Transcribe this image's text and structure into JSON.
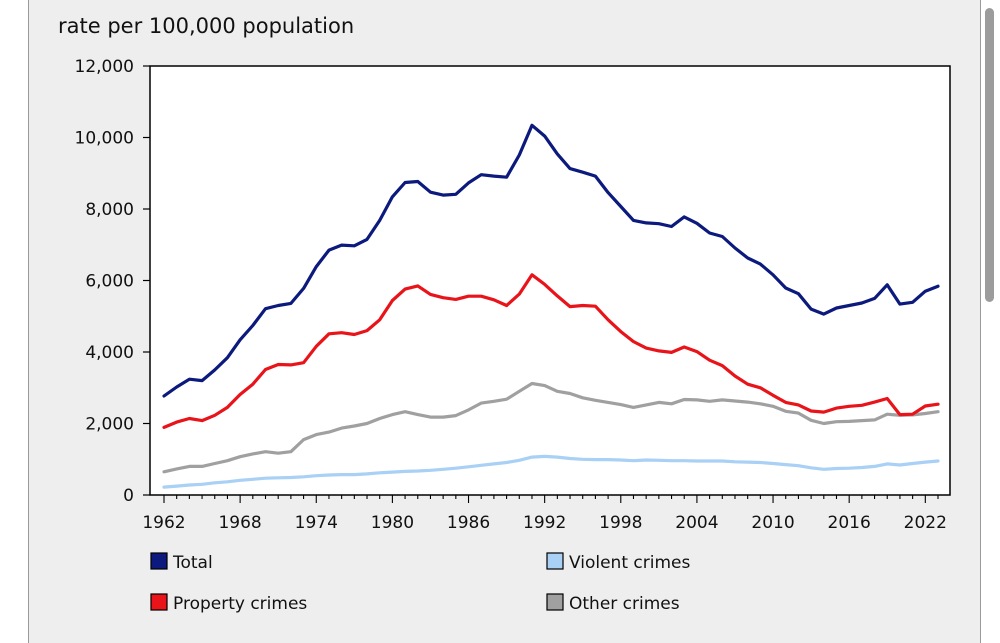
{
  "chart_data": {
    "type": "line",
    "title": "",
    "unit_label": "rate per 100,000 population",
    "xlabel": "",
    "ylabel": "rate per 100,000 population",
    "xlim": [
      1962,
      2023
    ],
    "ylim": [
      0,
      12000
    ],
    "x_ticks": [
      "1962",
      "1968",
      "1974",
      "1980",
      "1986",
      "1992",
      "1998",
      "2004",
      "2010",
      "2016",
      "2022"
    ],
    "x_tick_values": [
      1962,
      1968,
      1974,
      1980,
      1986,
      1992,
      1998,
      2004,
      2010,
      2016,
      2022
    ],
    "y_ticks": [
      "0",
      "2,000",
      "4,000",
      "6,000",
      "8,000",
      "10,000",
      "12,000"
    ],
    "y_tick_values": [
      0,
      2000,
      4000,
      6000,
      8000,
      10000,
      12000
    ],
    "grid": false,
    "legend_position": "bottom",
    "x": [
      1962,
      1963,
      1964,
      1965,
      1966,
      1967,
      1968,
      1969,
      1970,
      1971,
      1972,
      1973,
      1974,
      1975,
      1976,
      1977,
      1978,
      1979,
      1980,
      1981,
      1982,
      1983,
      1984,
      1985,
      1986,
      1987,
      1988,
      1989,
      1990,
      1991,
      1992,
      1993,
      1994,
      1995,
      1996,
      1997,
      1998,
      1999,
      2000,
      2001,
      2002,
      2003,
      2004,
      2005,
      2006,
      2007,
      2008,
      2009,
      2010,
      2011,
      2012,
      2013,
      2014,
      2015,
      2016,
      2017,
      2018,
      2019,
      2020,
      2021,
      2022,
      2023
    ],
    "series": [
      {
        "name": "Total",
        "color": "#0b1a7c",
        "values": [
          2770,
          3020,
          3240,
          3200,
          3500,
          3840,
          4340,
          4740,
          5210,
          5300,
          5360,
          5780,
          6390,
          6850,
          6990,
          6970,
          7150,
          7680,
          8340,
          8740,
          8770,
          8470,
          8390,
          8410,
          8730,
          8960,
          8920,
          8890,
          9510,
          10340,
          10040,
          9540,
          9130,
          9030,
          8920,
          8460,
          8070,
          7680,
          7610,
          7590,
          7510,
          7780,
          7600,
          7330,
          7230,
          6910,
          6630,
          6460,
          6160,
          5790,
          5630,
          5200,
          5060,
          5230,
          5300,
          5370,
          5500,
          5880,
          5340,
          5390,
          5700,
          5840
        ]
      },
      {
        "name": "Violent crimes",
        "color": "#a9d0f5",
        "values": [
          220,
          250,
          280,
          300,
          340,
          370,
          410,
          440,
          470,
          480,
          490,
          510,
          540,
          560,
          570,
          570,
          590,
          620,
          640,
          660,
          670,
          690,
          720,
          750,
          790,
          830,
          870,
          910,
          970,
          1060,
          1080,
          1060,
          1020,
          1000,
          990,
          990,
          980,
          960,
          980,
          970,
          960,
          960,
          950,
          950,
          950,
          930,
          920,
          910,
          880,
          850,
          820,
          760,
          720,
          740,
          750,
          770,
          800,
          870,
          840,
          880,
          920,
          950
        ]
      },
      {
        "name": "Property crimes",
        "color": "#e8141a",
        "values": [
          1890,
          2040,
          2140,
          2080,
          2230,
          2450,
          2810,
          3100,
          3510,
          3650,
          3640,
          3700,
          4160,
          4510,
          4540,
          4490,
          4600,
          4900,
          5440,
          5760,
          5850,
          5610,
          5520,
          5470,
          5560,
          5560,
          5460,
          5300,
          5620,
          6160,
          5890,
          5570,
          5270,
          5300,
          5280,
          4900,
          4570,
          4290,
          4110,
          4030,
          3990,
          4140,
          4010,
          3770,
          3620,
          3330,
          3100,
          3000,
          2790,
          2590,
          2520,
          2350,
          2320,
          2430,
          2480,
          2510,
          2600,
          2700,
          2250,
          2260,
          2490,
          2540
        ]
      },
      {
        "name": "Other crimes",
        "color": "#a0a0a0",
        "values": [
          650,
          730,
          800,
          800,
          880,
          960,
          1070,
          1150,
          1210,
          1170,
          1210,
          1550,
          1690,
          1760,
          1870,
          1930,
          2000,
          2140,
          2250,
          2330,
          2250,
          2180,
          2180,
          2220,
          2380,
          2570,
          2620,
          2680,
          2900,
          3120,
          3060,
          2900,
          2840,
          2720,
          2650,
          2590,
          2530,
          2450,
          2520,
          2590,
          2550,
          2670,
          2660,
          2620,
          2660,
          2630,
          2600,
          2550,
          2480,
          2340,
          2290,
          2090,
          2000,
          2050,
          2060,
          2080,
          2100,
          2260,
          2230,
          2240,
          2280,
          2330
        ]
      }
    ]
  }
}
